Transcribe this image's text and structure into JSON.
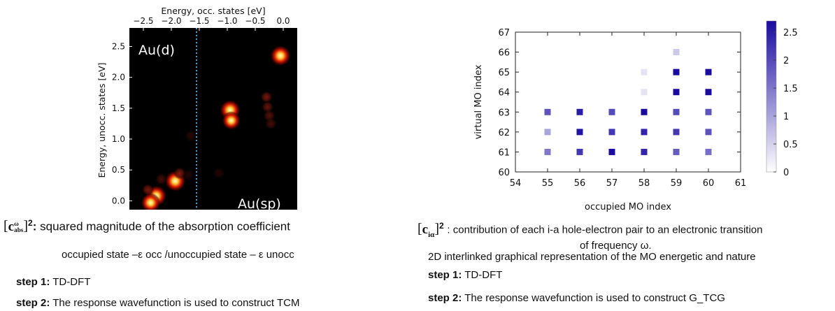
{
  "left_panel": {
    "caption_main": "squared magnitude of the absorption coefficient",
    "caption_symbol": "c",
    "caption_sup": "ω",
    "caption_sub": "abs",
    "caption_power": "2",
    "caption_colon": ":",
    "subline": "occupied state –ε occ /unoccupied state – ε unocc",
    "step1_label": "step 1:",
    "step1_text": "TD-DFT",
    "step2_label": "step 2:",
    "step2_text": "The response wavefunction is used to construct TCM"
  },
  "right_panel": {
    "caption_symbol": "c",
    "caption_sub": "iα",
    "caption_power": "2",
    "caption_line1": ": contribution of each i-a hole-electron pair to an electronic transition",
    "caption_line2": "of frequency  ω.",
    "subline": "2D interlinked graphical representation of the MO energetic and nature",
    "step1_label": "step 1:",
    "step1_text": "TD-DFT",
    "step2_label": "step 2:",
    "step2_text": "The response wavefunction is used to construct G_TCG"
  },
  "chart_data": [
    {
      "type": "heatmap",
      "title": "",
      "xlabel": "Energy, occ. states [eV]",
      "ylabel": "Energy, unocc. states [eV]",
      "xlim": [
        -2.75,
        0.25
      ],
      "ylim": [
        -0.2,
        2.8
      ],
      "xticks": [
        -2.5,
        -2.0,
        -1.5,
        -1.0,
        -0.5,
        0.0
      ],
      "xtick_labels": [
        "−2.5",
        "−2.0",
        "−1.5",
        "−1.0",
        "−0.5",
        "0.0"
      ],
      "yticks": [
        0.0,
        0.5,
        1.0,
        1.5,
        2.0,
        2.5
      ],
      "ytick_labels": [
        "0.0",
        "0.5",
        "1.0",
        "1.5",
        "2.0",
        "2.5"
      ],
      "annotations": [
        "Au(d)",
        "Au(sp)"
      ],
      "divider_x": -1.55,
      "background": "#000000",
      "colormap": "hot",
      "points": [
        {
          "x": -0.05,
          "y": 2.35,
          "v": 0.95
        },
        {
          "x": -0.95,
          "y": 1.47,
          "v": 0.95
        },
        {
          "x": -0.93,
          "y": 1.3,
          "v": 0.6
        },
        {
          "x": -0.3,
          "y": 1.68,
          "v": 0.35
        },
        {
          "x": -0.28,
          "y": 1.52,
          "v": 0.3
        },
        {
          "x": -0.25,
          "y": 1.38,
          "v": 0.25
        },
        {
          "x": -0.22,
          "y": 1.25,
          "v": 0.2
        },
        {
          "x": -1.93,
          "y": 0.32,
          "v": 1.0
        },
        {
          "x": -2.27,
          "y": 0.08,
          "v": 1.0
        },
        {
          "x": -2.37,
          "y": -0.03,
          "v": 0.75
        },
        {
          "x": -2.42,
          "y": 0.18,
          "v": 0.35
        },
        {
          "x": -1.85,
          "y": 0.45,
          "v": 0.35
        },
        {
          "x": -2.18,
          "y": 0.35,
          "v": 0.2
        },
        {
          "x": -1.7,
          "y": 0.42,
          "v": 0.1
        },
        {
          "x": -1.65,
          "y": 1.05,
          "v": 0.12
        },
        {
          "x": -1.15,
          "y": 0.45,
          "v": 0.1
        }
      ]
    },
    {
      "type": "heatmap",
      "title": "",
      "xlabel": "occupied MO index",
      "ylabel": "virtual MO index",
      "xlim": [
        54,
        61
      ],
      "ylim": [
        60,
        67
      ],
      "xticks": [
        54,
        55,
        56,
        57,
        58,
        59,
        60,
        61
      ],
      "yticks": [
        60,
        61,
        62,
        63,
        64,
        65,
        66,
        67
      ],
      "colorbar_ticks": [
        "0",
        "0.5",
        "1",
        "1.5",
        "2",
        "2.5"
      ],
      "colorbar_range": [
        0,
        2.7
      ],
      "cells": [
        {
          "x": 55,
          "y": 61,
          "v": 1.5
        },
        {
          "x": 55,
          "y": 62,
          "v": 1.0
        },
        {
          "x": 55,
          "y": 63,
          "v": 1.9
        },
        {
          "x": 56,
          "y": 61,
          "v": 2.2
        },
        {
          "x": 56,
          "y": 62,
          "v": 2.6
        },
        {
          "x": 56,
          "y": 63,
          "v": 2.5
        },
        {
          "x": 57,
          "y": 61,
          "v": 2.7
        },
        {
          "x": 57,
          "y": 62,
          "v": 2.2
        },
        {
          "x": 57,
          "y": 63,
          "v": 2.0
        },
        {
          "x": 58,
          "y": 61,
          "v": 2.4
        },
        {
          "x": 58,
          "y": 62,
          "v": 2.4
        },
        {
          "x": 58,
          "y": 63,
          "v": 2.7
        },
        {
          "x": 58,
          "y": 64,
          "v": 0.3
        },
        {
          "x": 58,
          "y": 65,
          "v": 0.3
        },
        {
          "x": 59,
          "y": 61,
          "v": 1.8
        },
        {
          "x": 59,
          "y": 62,
          "v": 2.2
        },
        {
          "x": 59,
          "y": 63,
          "v": 2.0
        },
        {
          "x": 59,
          "y": 64,
          "v": 2.7
        },
        {
          "x": 59,
          "y": 65,
          "v": 2.7
        },
        {
          "x": 59,
          "y": 66,
          "v": 0.6
        },
        {
          "x": 60,
          "y": 61,
          "v": 1.6
        },
        {
          "x": 60,
          "y": 62,
          "v": 1.9
        },
        {
          "x": 60,
          "y": 63,
          "v": 1.9
        },
        {
          "x": 60,
          "y": 64,
          "v": 2.7
        },
        {
          "x": 60,
          "y": 65,
          "v": 2.8
        }
      ]
    }
  ]
}
